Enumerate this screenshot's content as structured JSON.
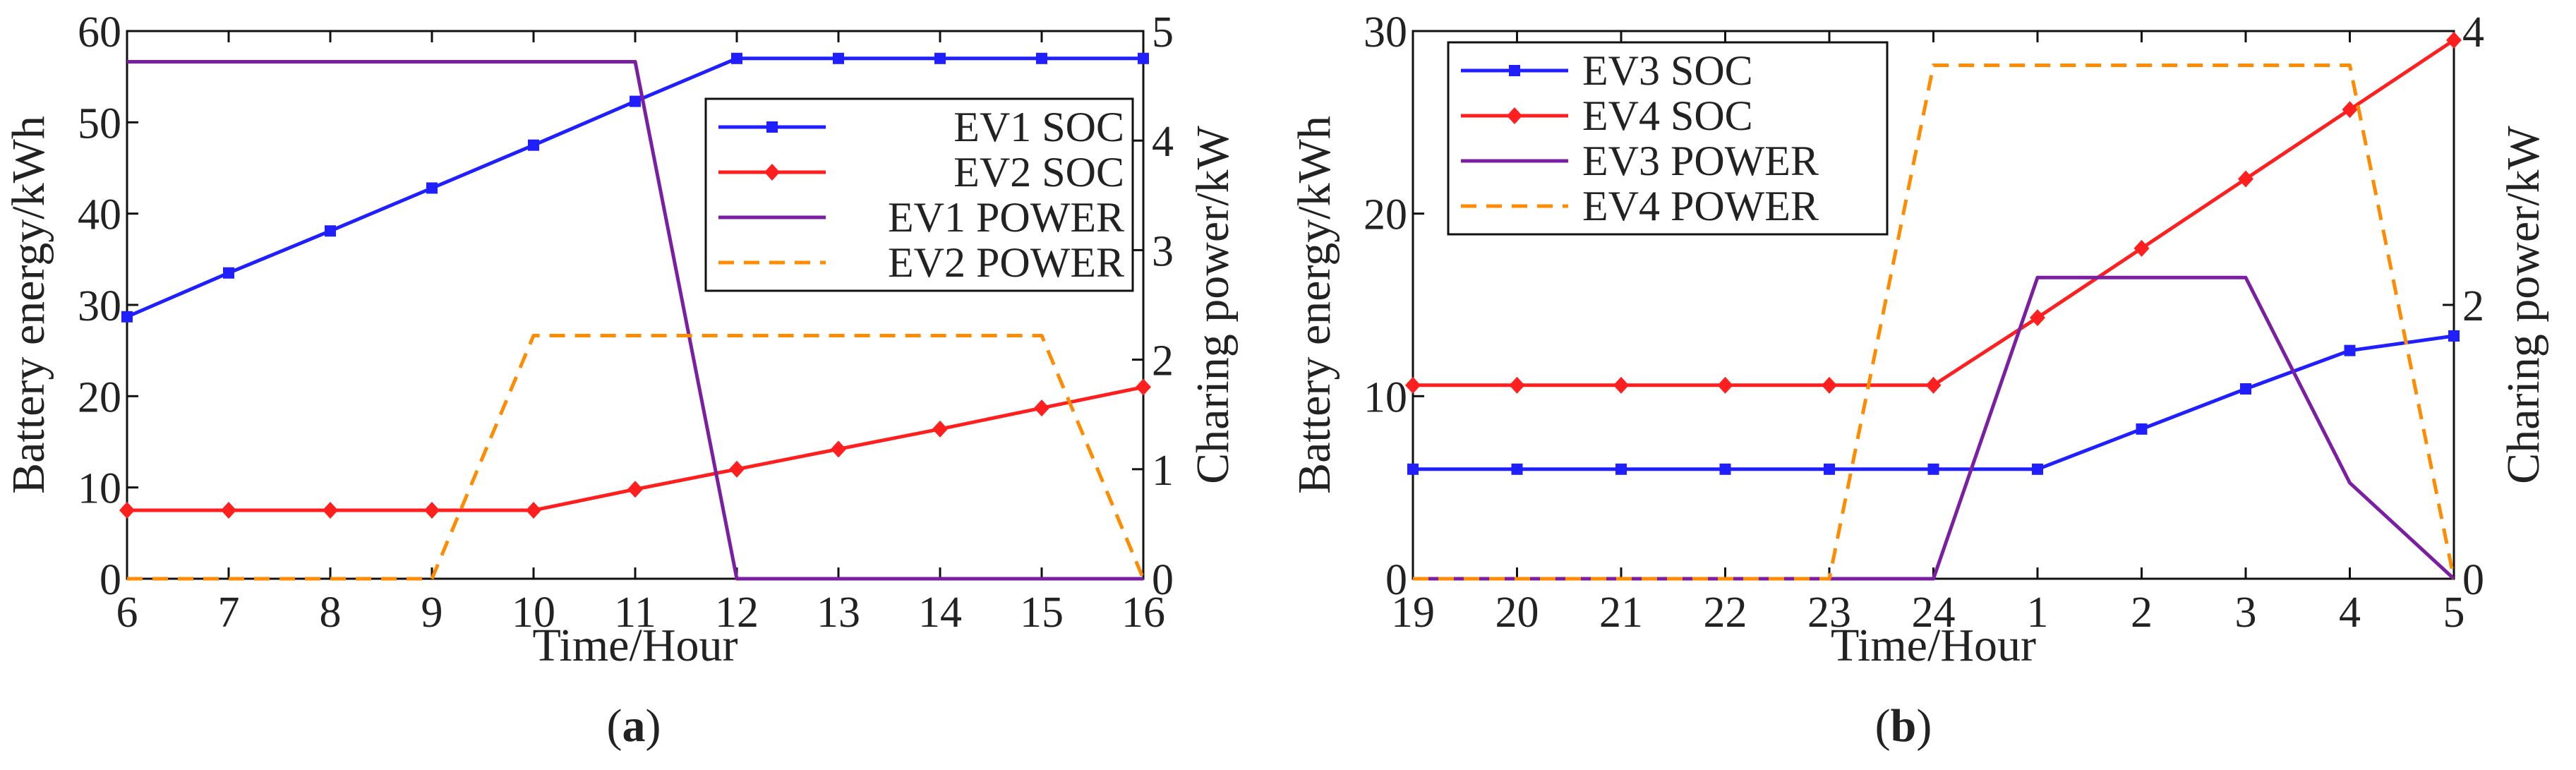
{
  "chart_data": [
    {
      "type": "line",
      "panel_label": "a",
      "caption_open": "(",
      "caption_close": ")",
      "categories": [
        "6",
        "7",
        "8",
        "9",
        "10",
        "11",
        "12",
        "13",
        "14",
        "15",
        "16"
      ],
      "xlabel": "Time/Hour",
      "ylabel": "Battery energy/kWh",
      "y2label": "Charing power/kW",
      "xlim": [
        0,
        10
      ],
      "ylim": [
        0,
        60
      ],
      "y2lim": [
        0,
        5
      ],
      "yticks": [
        0,
        10,
        20,
        30,
        40,
        50,
        60
      ],
      "y2ticks": [
        0,
        1,
        2,
        3,
        4,
        5
      ],
      "legend_position": "center-right",
      "series": [
        {
          "name": "EV1 SOC",
          "axis": "left",
          "color": "#1f1fff",
          "marker": "square",
          "x": [
            0,
            1,
            2,
            3,
            4,
            5,
            6,
            7,
            8,
            9,
            10
          ],
          "values": [
            28.7,
            33.5,
            38.1,
            42.8,
            47.5,
            52.3,
            57,
            57,
            57,
            57,
            57
          ]
        },
        {
          "name": "EV2 SOC",
          "axis": "left",
          "color": "#ff1f1f",
          "marker": "diamond",
          "x": [
            0,
            1,
            2,
            3,
            4,
            5,
            6,
            7,
            8,
            9,
            10
          ],
          "values": [
            7.5,
            7.5,
            7.5,
            7.5,
            7.5,
            9.8,
            12,
            14.2,
            16.4,
            18.7,
            21
          ]
        },
        {
          "name": "EV1 POWER",
          "axis": "right",
          "color": "#7b1fa2",
          "dash": "solid",
          "x": [
            0,
            5,
            6,
            10
          ],
          "values": [
            4.72,
            4.72,
            0,
            0
          ]
        },
        {
          "name": "EV2 POWER",
          "axis": "right",
          "color": "#ff8c00",
          "dash": "dashed",
          "x": [
            0,
            3,
            4,
            9,
            10
          ],
          "values": [
            0,
            0,
            2.22,
            2.22,
            0
          ]
        }
      ]
    },
    {
      "type": "line",
      "panel_label": "b",
      "caption_open": "(",
      "caption_close": ")",
      "categories": [
        "19",
        "20",
        "21",
        "22",
        "23",
        "24",
        "1",
        "2",
        "3",
        "4",
        "5"
      ],
      "xlabel": "Time/Hour",
      "ylabel": "Battery energy/kWh",
      "y2label": "Charing power/kW",
      "xlim": [
        0,
        10
      ],
      "ylim": [
        0,
        30
      ],
      "y2lim": [
        0,
        4
      ],
      "yticks": [
        0,
        10,
        20,
        30
      ],
      "y2ticks": [
        0,
        2,
        4
      ],
      "legend_position": "top-left",
      "series": [
        {
          "name": "EV3 SOC",
          "axis": "left",
          "color": "#1f1fff",
          "marker": "square",
          "x": [
            0,
            1,
            2,
            3,
            4,
            5,
            6,
            7,
            8,
            9,
            10
          ],
          "values": [
            6,
            6,
            6,
            6,
            6,
            6,
            6,
            8.2,
            10.4,
            12.5,
            13.3
          ]
        },
        {
          "name": "EV4 SOC",
          "axis": "left",
          "color": "#ff1f1f",
          "marker": "diamond",
          "x": [
            0,
            1,
            2,
            3,
            4,
            5,
            6,
            7,
            8,
            9,
            10
          ],
          "values": [
            10.6,
            10.6,
            10.6,
            10.6,
            10.6,
            10.6,
            14.3,
            18.1,
            21.9,
            25.7,
            29.5
          ]
        },
        {
          "name": "EV3 POWER",
          "axis": "right",
          "color": "#7b1fa2",
          "dash": "solid",
          "x": [
            0,
            5,
            6,
            8,
            9,
            10
          ],
          "values": [
            0,
            0,
            2.2,
            2.2,
            0.7,
            0
          ]
        },
        {
          "name": "EV4 POWER",
          "axis": "right",
          "color": "#ff8c00",
          "dash": "dashed",
          "x": [
            0,
            4,
            5,
            9,
            10
          ],
          "values": [
            0,
            0,
            3.75,
            3.75,
            0
          ]
        }
      ]
    }
  ]
}
